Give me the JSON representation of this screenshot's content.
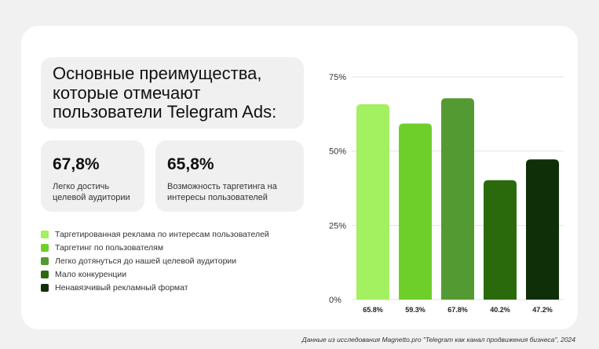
{
  "heading": {
    "title": "Основные преимущества,\nкоторые отмечают\nпользователи Telegram Ads:"
  },
  "stats": [
    {
      "value": "67,8%",
      "label": "Легко достичь\nцелевой аудитории"
    },
    {
      "value": "65,8%",
      "label": "Возможность таргетинга на\nинтересы пользователей"
    }
  ],
  "footer": "Данные из исследования Magnetto.pro \"Telegram как канал продвижения бизнеса\", 2024",
  "chart_data": {
    "type": "bar",
    "categories": [
      "Таргетированная реклама по интересам пользователей",
      "Таргетинг по пользователям",
      "Легко дотянуться до нашей целевой аудитории",
      "Мало конкуренции",
      "Ненавязчивый рекламный формат"
    ],
    "values": [
      65.8,
      59.3,
      67.8,
      40.2,
      47.2
    ],
    "value_labels": [
      "65.8%",
      "59.3%",
      "67.8%",
      "40.2%",
      "47.2%"
    ],
    "colors": [
      "#a3f060",
      "#6fcf2a",
      "#549a32",
      "#2a6a0c",
      "#0f2f08"
    ],
    "ylim": [
      0,
      75
    ],
    "yticks": [
      0,
      25,
      50,
      75
    ],
    "ytick_labels": [
      "0%",
      "25%",
      "50%",
      "75%"
    ],
    "grid": true,
    "legend_position": "left"
  }
}
